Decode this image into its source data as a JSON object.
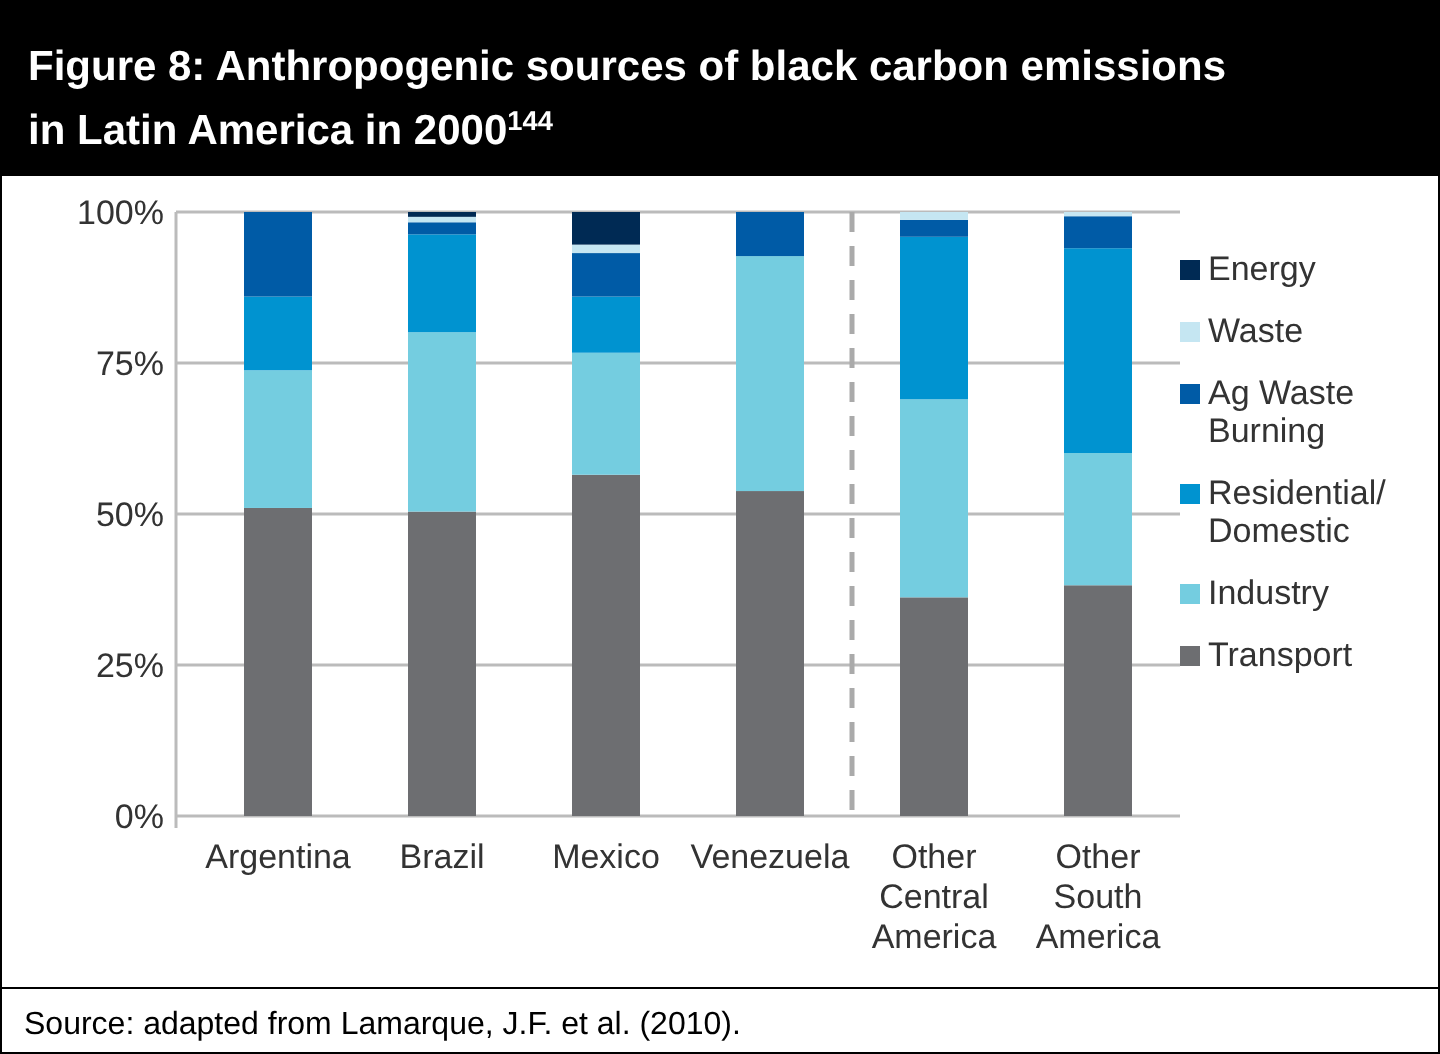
{
  "chart_data": {
    "type": "bar",
    "title": "Figure 8: Anthropogenic sources of black carbon emissions in Latin America in 2000$^{144}$",
    "categories": [
      "Argentina",
      "Brazil",
      "Mexico",
      "Venezuela",
      "Other Central America",
      "Other South America"
    ],
    "stacked": true,
    "series": [
      {
        "name": "Transport",
        "color": "#6d6e71",
        "values": [
          51.0,
          50.4,
          56.5,
          53.8,
          36.2,
          38.2
        ]
      },
      {
        "name": "Industry",
        "color": "#74cde0",
        "values": [
          22.8,
          29.7,
          20.2,
          38.9,
          32.8,
          21.9
        ]
      },
      {
        "name": "Residential/ Domestic",
        "color": "#0093d0",
        "values": [
          12.2,
          16.2,
          9.3,
          0,
          26.9,
          33.9
        ]
      },
      {
        "name": "Ag Waste Burning",
        "color": "#005ba6",
        "values": [
          14.0,
          2.0,
          7.2,
          7.3,
          2.8,
          5.3
        ]
      },
      {
        "name": "Waste",
        "color": "#c5e6f2",
        "values": [
          0,
          0.9,
          1.4,
          0,
          1.3,
          0.7
        ]
      },
      {
        "name": "Energy",
        "color": "#002a54",
        "values": [
          0,
          0.8,
          5.4,
          0,
          0,
          0
        ]
      }
    ],
    "ylim": [
      0,
      100
    ],
    "yticks": [
      {
        "value": 0,
        "label": "0%"
      },
      {
        "value": 25,
        "label": "25%"
      },
      {
        "value": 50,
        "label": "50%"
      },
      {
        "value": 75,
        "label": "75%"
      },
      {
        "value": 100,
        "label": "100%"
      }
    ],
    "grid": "y",
    "legend": "right",
    "annotations": [
      "Source: adapted from Lamarque, J.F. et al. (2010)."
    ]
  }
}
